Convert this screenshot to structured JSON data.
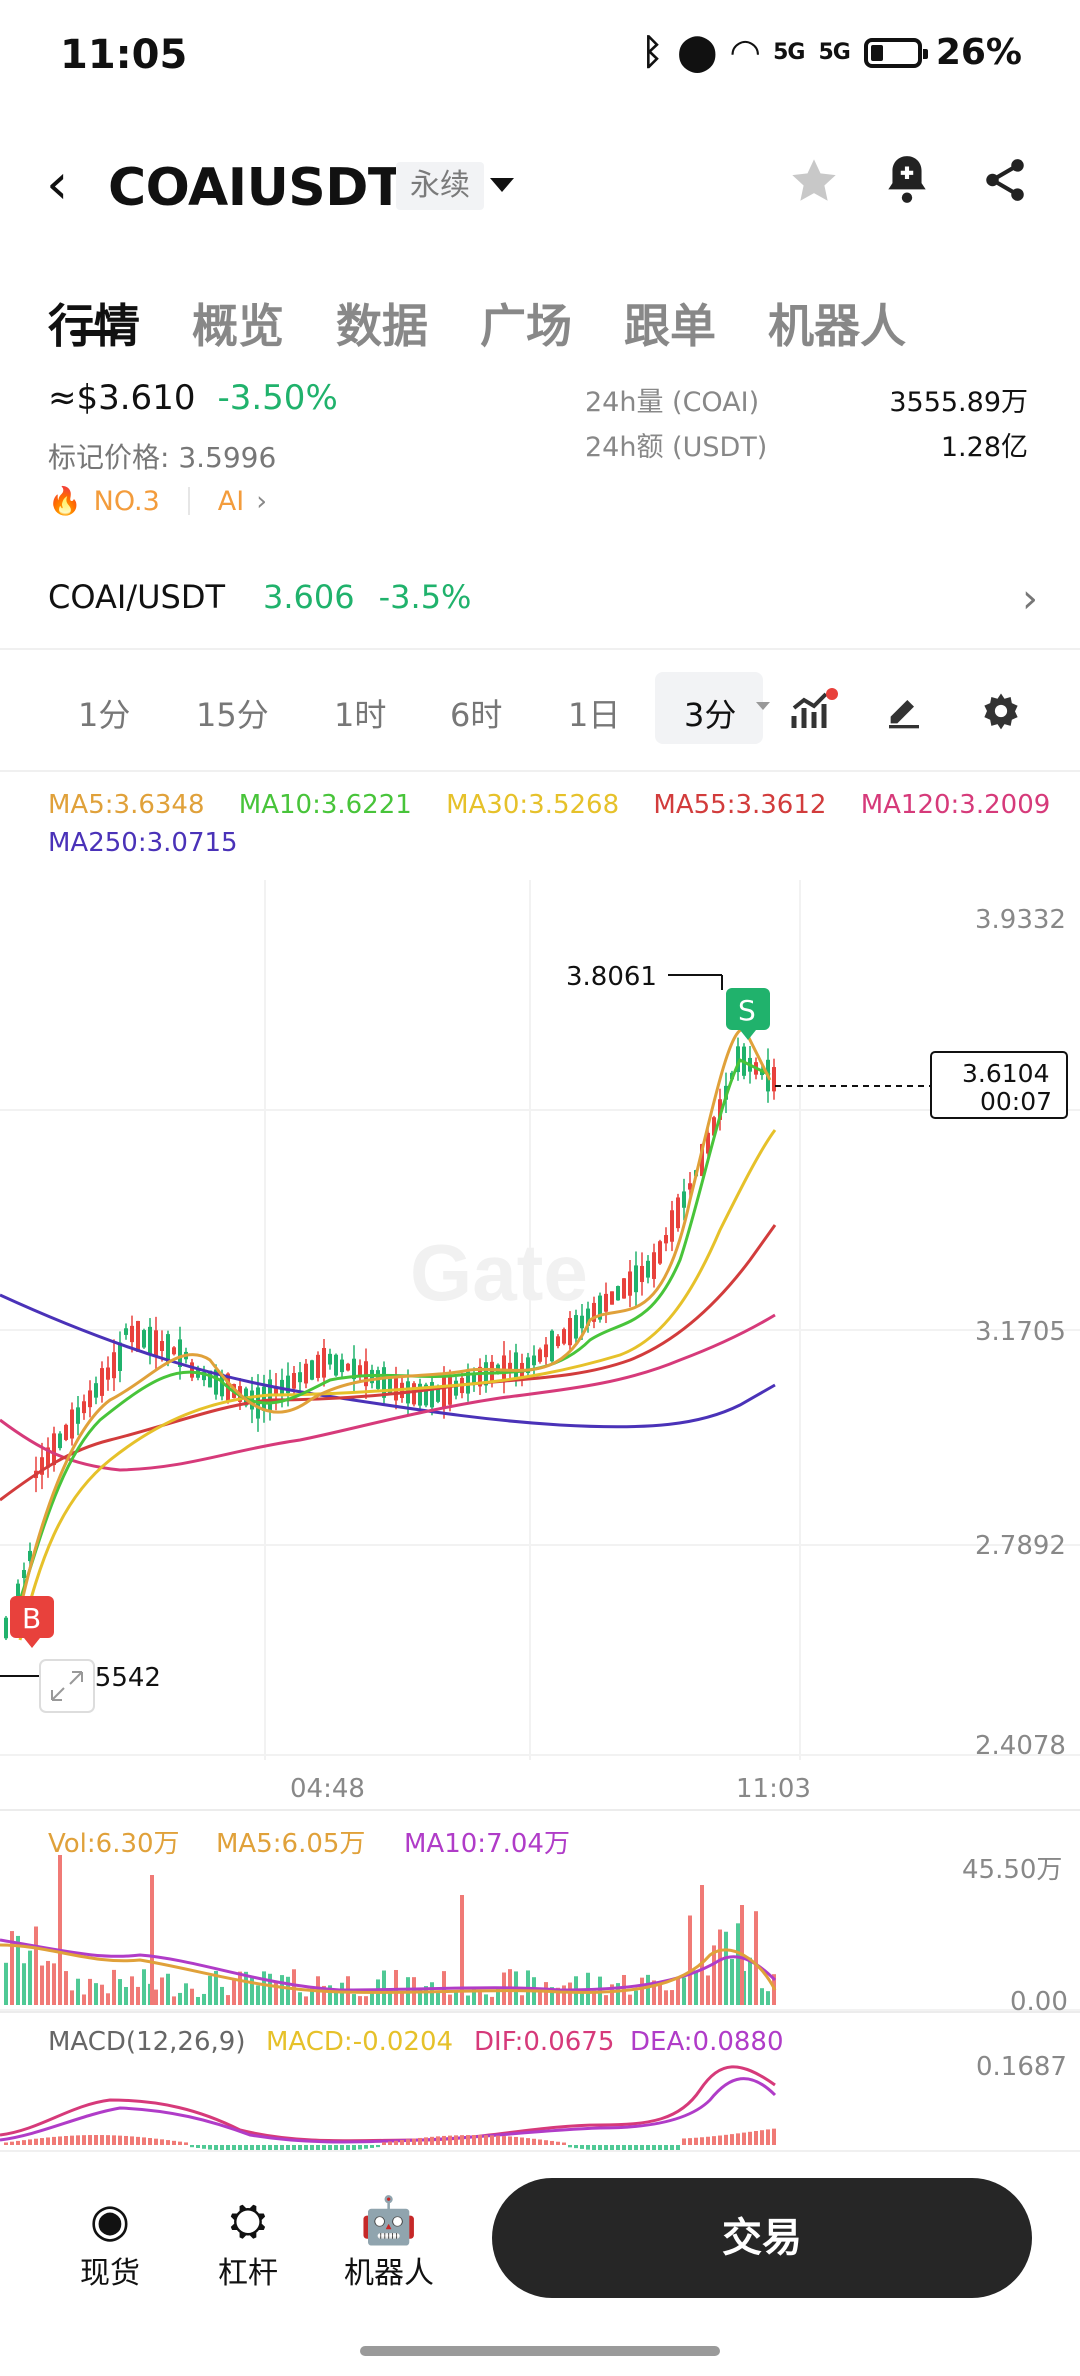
{
  "status": {
    "time": "11:05",
    "battery": "26%",
    "net1": "5G",
    "net2": "5G"
  },
  "header": {
    "title": "COAIUSDT",
    "badge": "永续"
  },
  "tabs": [
    "行情",
    "概览",
    "数据",
    "广场",
    "跟单",
    "机器人"
  ],
  "ticker": {
    "last_price": "≈$3.610",
    "change_pct": "-3.50%",
    "mark_price_label": "标记价格: 3.5996",
    "vol_label": "24h量 (COAI)",
    "vol_value": "3555.89万",
    "amount_label": "24h额 (USDT)",
    "amount_value": "1.28亿",
    "rank": "NO.3",
    "tag": "AI"
  },
  "spot": {
    "pair": "COAI/USDT",
    "price": "3.606",
    "change": "-3.5%"
  },
  "timeframes": [
    "1分",
    "15分",
    "1时",
    "6时",
    "1日",
    "3分"
  ],
  "ma_legend": [
    {
      "text": "MA5:3.6348",
      "color": "#e0a13a"
    },
    {
      "text": "MA10:3.6221",
      "color": "#48c43a"
    },
    {
      "text": "MA30:3.5268",
      "color": "#e6c12a"
    },
    {
      "text": "MA55:3.3612",
      "color": "#d23c3c"
    },
    {
      "text": "MA120:3.2009",
      "color": "#d63a7a"
    },
    {
      "text": "MA250:3.0715",
      "color": "#4a32b8"
    }
  ],
  "chart_data": {
    "type": "candlestick",
    "y_ticks": [
      "3.9332",
      "3.1705",
      "2.7892",
      "2.4078"
    ],
    "x_ticks": [
      "04:48",
      "11:03"
    ],
    "current_price": "3.6104",
    "countdown": "00:07",
    "high_label": "3.8061",
    "low_label": "2.5542",
    "buy_marker": "B",
    "sell_marker": "S",
    "watermark": "Gate",
    "volume": {
      "vol": "Vol:6.30万",
      "ma5": "MA5:6.05万",
      "ma10": "MA10:7.04万",
      "max": "45.50万",
      "min": "0.00"
    },
    "macd": {
      "title": "MACD(12,26,9)",
      "macd": "MACD:-0.0204",
      "dif": "DIF:0.0675",
      "dea": "DEA:0.0880",
      "max": "0.1687"
    }
  },
  "bottom_nav": [
    "现货",
    "杠杆",
    "机器人"
  ],
  "trade_button": "交易"
}
